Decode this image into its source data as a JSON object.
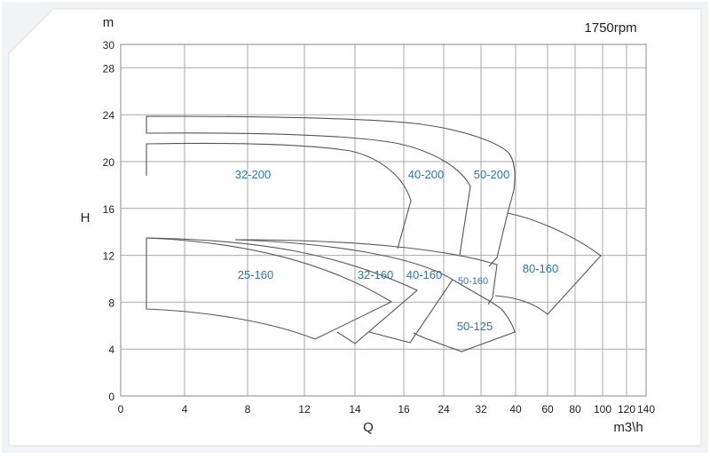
{
  "chart_data": {
    "type": "line",
    "title": "1750rpm",
    "ylabel": "H",
    "yunit": "m",
    "xlabel": "Q",
    "xunit": "m3\\h",
    "ylim": [
      0,
      30
    ],
    "yticks": [
      "0",
      "4",
      "8",
      "12",
      "16",
      "20",
      "24",
      "28",
      "30"
    ],
    "yticks_values": [
      0,
      4,
      8,
      12,
      16,
      20,
      24,
      28,
      30
    ],
    "xticks": [
      "0",
      "4",
      "8",
      "12",
      "14",
      "16",
      "24",
      "32",
      "40",
      "60",
      "80",
      "100",
      "120",
      "140"
    ],
    "grid": true,
    "scale_note": "piecewise x axis",
    "curve_color": "#555555",
    "label_color": "#2a77b8",
    "regions": [
      {
        "name": "32-200"
      },
      {
        "name": "40-200"
      },
      {
        "name": "50-200"
      },
      {
        "name": "25-160"
      },
      {
        "name": "32-160"
      },
      {
        "name": "40-160"
      },
      {
        "name": "50-160"
      },
      {
        "name": "80-160"
      },
      {
        "name": "50-125"
      }
    ]
  }
}
